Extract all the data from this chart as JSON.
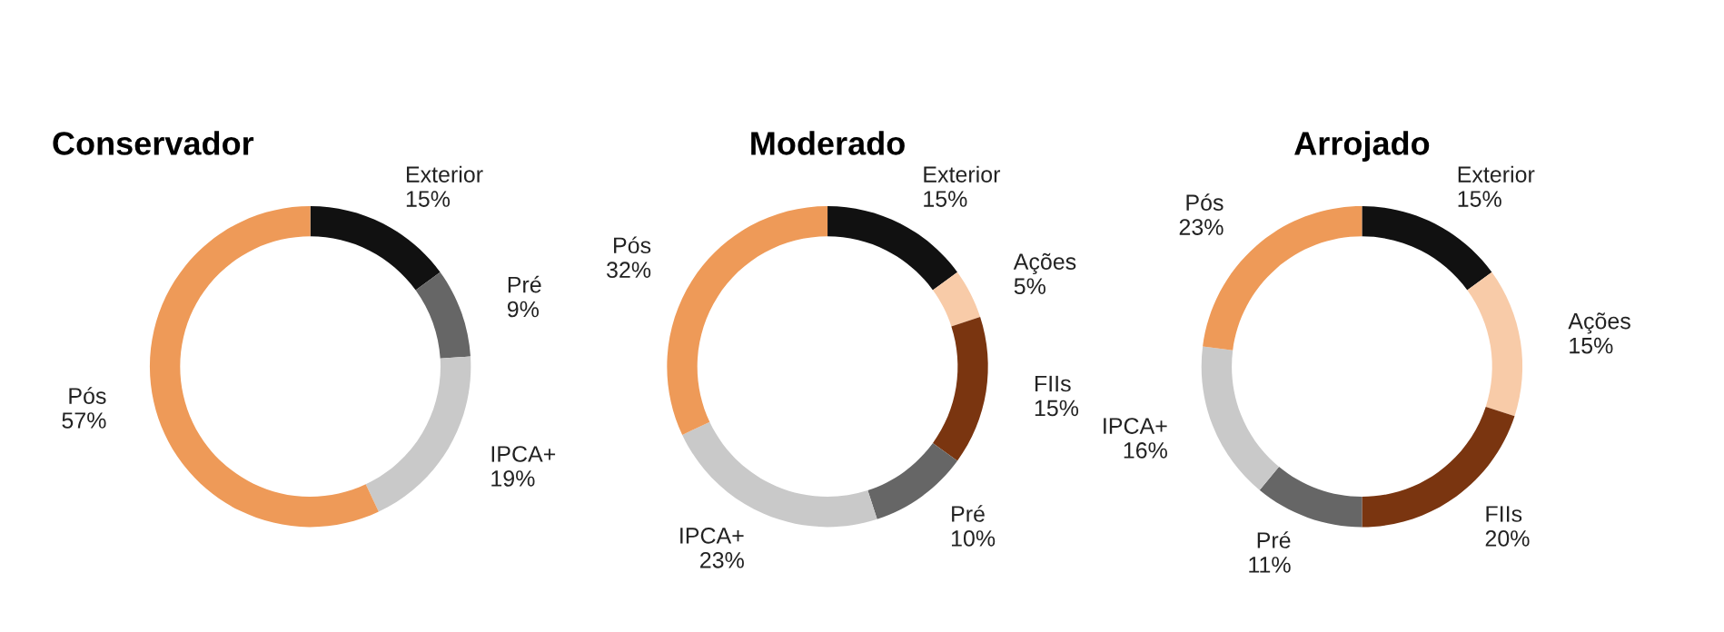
{
  "chart_data": [
    {
      "type": "donut",
      "title": "Conservador",
      "categories": [
        "Exterior",
        "Pré",
        "IPCA+",
        "Pós"
      ],
      "values": [
        15,
        9,
        19,
        57
      ],
      "value_labels": [
        "15%",
        "9%",
        "19%",
        "57%"
      ],
      "colors": [
        "#111111",
        "#666666",
        "#c9c9c9",
        "#ee9a58"
      ]
    },
    {
      "type": "donut",
      "title": "Moderado",
      "categories": [
        "Exterior",
        "Ações",
        "FIIs",
        "Pré",
        "IPCA+",
        "Pós"
      ],
      "values": [
        15,
        5,
        15,
        10,
        23,
        32
      ],
      "value_labels": [
        "15%",
        "5%",
        "15%",
        "10%",
        "23%",
        "32%"
      ],
      "colors": [
        "#111111",
        "#f8cba8",
        "#7a3510",
        "#666666",
        "#c9c9c9",
        "#ee9a58"
      ]
    },
    {
      "type": "donut",
      "title": "Arrojado",
      "categories": [
        "Exterior",
        "Ações",
        "FIIs",
        "Pré",
        "IPCA+",
        "Pós"
      ],
      "values": [
        15,
        15,
        20,
        11,
        16,
        23
      ],
      "value_labels": [
        "15%",
        "15%",
        "20%",
        "11%",
        "16%",
        "23%"
      ],
      "colors": [
        "#111111",
        "#f8cba8",
        "#7a3510",
        "#666666",
        "#c9c9c9",
        "#ee9a58"
      ]
    }
  ]
}
